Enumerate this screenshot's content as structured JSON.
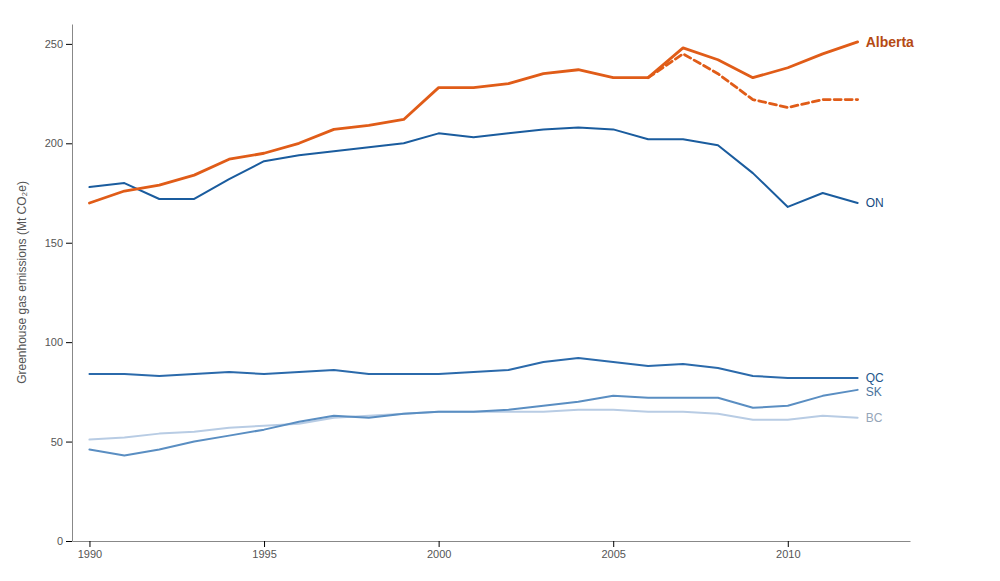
{
  "chart_data": {
    "type": "line",
    "y_label": "Greenhouse gas emissions (Mt CO₂e)",
    "x": [
      1990,
      1991,
      1992,
      1993,
      1994,
      1995,
      1996,
      1997,
      1998,
      1999,
      2000,
      2001,
      2002,
      2003,
      2004,
      2005,
      2006,
      2007,
      2008,
      2009,
      2010,
      2011,
      2012
    ],
    "series": [
      {
        "name": "BC",
        "color": "#b8cce4",
        "line_style": "solid",
        "values": [
          51,
          52,
          54,
          55,
          57,
          58,
          59,
          62,
          63,
          64,
          65,
          65,
          65,
          65,
          66,
          66,
          65,
          65,
          64,
          61,
          61,
          63,
          62
        ]
      },
      {
        "name": "SK",
        "color": "#5a8ec2",
        "line_style": "solid",
        "values": [
          46,
          43,
          46,
          50,
          53,
          56,
          60,
          63,
          62,
          64,
          65,
          65,
          66,
          68,
          70,
          73,
          72,
          72,
          72,
          67,
          68,
          73,
          76
        ]
      },
      {
        "name": "QC",
        "color": "#2b6aab",
        "line_style": "solid",
        "values": [
          84,
          84,
          83,
          84,
          85,
          84,
          85,
          86,
          84,
          84,
          84,
          85,
          86,
          90,
          92,
          90,
          88,
          89,
          87,
          83,
          82,
          82,
          82
        ]
      },
      {
        "name": "ON",
        "color": "#1a5c9e",
        "line_style": "solid",
        "values": [
          178,
          180,
          172,
          172,
          182,
          191,
          194,
          196,
          198,
          200,
          205,
          203,
          205,
          207,
          208,
          207,
          202,
          202,
          199,
          185,
          168,
          175,
          170
        ]
      },
      {
        "color": "#e05c18",
        "line_style": "dashed",
        "values": [
          null,
          null,
          null,
          null,
          null,
          null,
          null,
          null,
          null,
          null,
          null,
          null,
          null,
          null,
          null,
          null,
          233,
          245,
          235,
          222,
          218,
          222,
          222
        ]
      },
      {
        "name": "Alberta",
        "color": "#e05c18",
        "line_style": "solid",
        "values": [
          170,
          176,
          179,
          184,
          192,
          195,
          200,
          207,
          209,
          212,
          228,
          228,
          230,
          235,
          237,
          233,
          233,
          248,
          242,
          233,
          238,
          245,
          251
        ]
      }
    ],
    "xlim": [
      1989.5,
      2013.5
    ],
    "xticks": [
      1990,
      1995,
      2000,
      2005,
      2010
    ],
    "ylim": [
      0,
      260
    ],
    "yticks": [
      0,
      50,
      100,
      150,
      200,
      250
    ],
    "grid": false
  }
}
